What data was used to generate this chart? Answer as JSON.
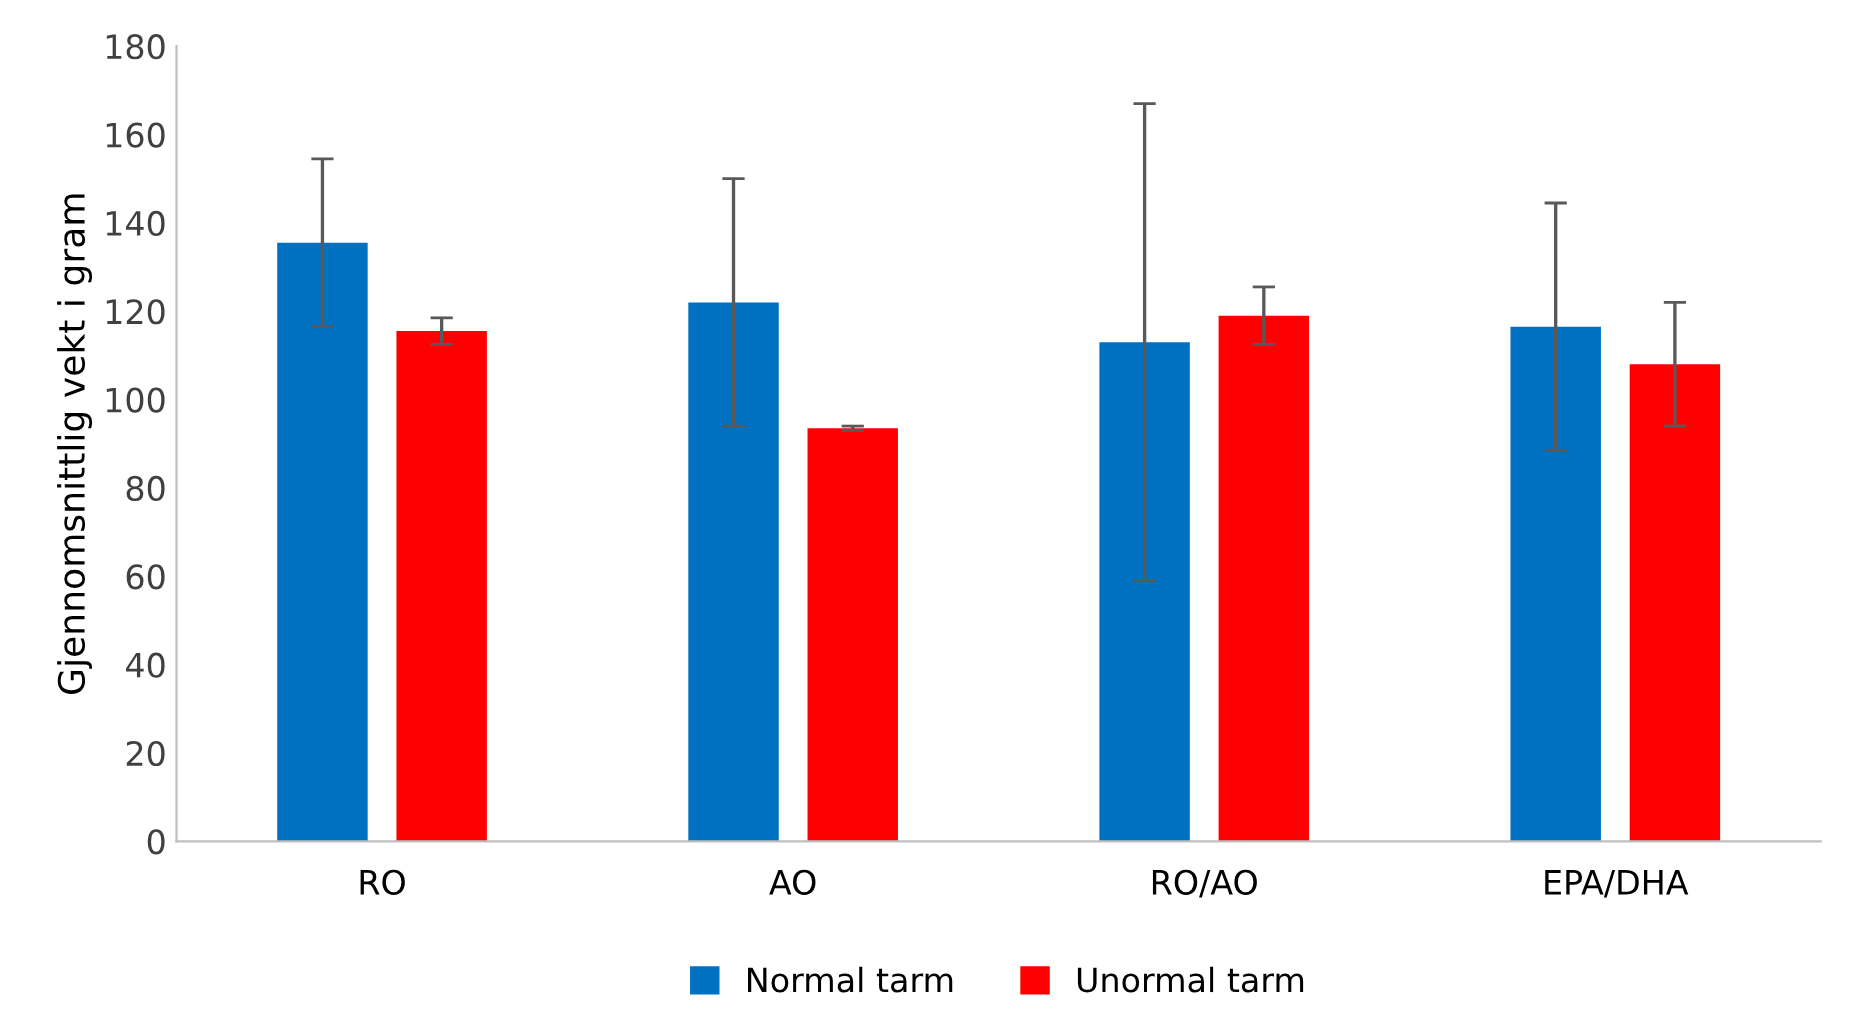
{
  "chart_data": {
    "type": "bar",
    "ylabel": "Gjennomsnittlig vekt i gram",
    "categories": [
      "RO",
      "AO",
      "RO/AO",
      "EPA/DHA"
    ],
    "series": [
      {
        "name": "Normal tarm",
        "color": "#0070c0",
        "values": [
          135.5,
          122,
          113,
          116.5
        ],
        "errors": [
          19,
          28,
          54,
          28
        ]
      },
      {
        "name": "Unormal tarm",
        "color": "#ff0000",
        "values": [
          115.5,
          93.5,
          119,
          108
        ],
        "errors": [
          3,
          0.5,
          6.5,
          14
        ]
      }
    ],
    "ylim": [
      0,
      180
    ],
    "yticks": [
      0,
      20,
      40,
      60,
      80,
      100,
      120,
      140,
      160,
      180
    ],
    "grid": false,
    "legend": "bottom"
  }
}
